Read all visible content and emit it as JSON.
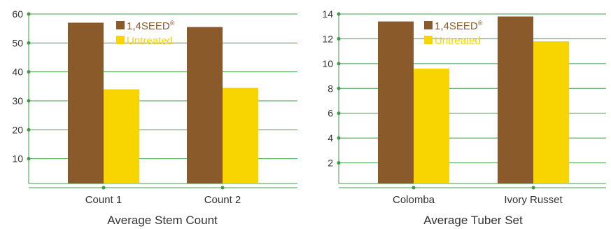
{
  "colors": {
    "axis": "#3f9b48",
    "series_a": "#8b5a2b",
    "series_b": "#f8d400",
    "legend_a_text": "#8b5a2b",
    "legend_b_text": "#f8d400",
    "text": "#333333"
  },
  "chart_data": [
    {
      "type": "bar",
      "title": "Average Stem Count",
      "categories": [
        "Count 1",
        "Count 2"
      ],
      "series": [
        {
          "name": "1,4SEED®",
          "values": [
            57,
            55.5
          ]
        },
        {
          "name": "Untreated",
          "values": [
            34,
            34.5
          ]
        }
      ],
      "ylim": [
        0,
        60
      ],
      "yticks": [
        "10",
        "20",
        "30",
        "40",
        "50",
        "60"
      ],
      "grid": true,
      "legend": "top-right"
    },
    {
      "type": "bar",
      "title": "Average Tuber Set",
      "categories": [
        "Colomba",
        "Ivory Russet"
      ],
      "series": [
        {
          "name": "1,4SEED®",
          "values": [
            13.4,
            13.8
          ]
        },
        {
          "name": "Untreated",
          "values": [
            9.6,
            11.8
          ]
        }
      ],
      "ylim": [
        0,
        14
      ],
      "yticks": [
        "2",
        "4",
        "6",
        "8",
        "10",
        "12",
        "14"
      ],
      "grid": true,
      "legend": "top-right"
    }
  ]
}
